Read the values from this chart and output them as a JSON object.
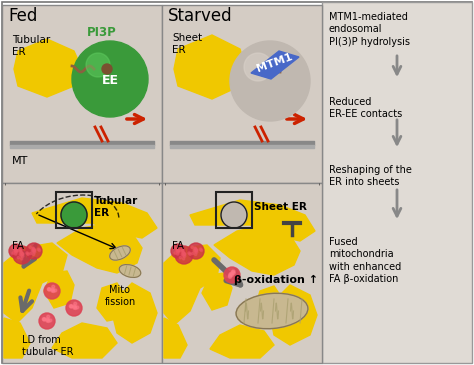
{
  "bg_panel_top": "#d4ccc4",
  "bg_panel_bottom": "#d4ccc4",
  "bg_right": "#e0dbd5",
  "yellow_er": "#f0c800",
  "yellow_er2": "#e8c000",
  "title_fed": "Fed",
  "title_starved": "Starved",
  "label_tubular_er_top": "Tubular\nER",
  "label_sheet_er_top": "Sheet\nER",
  "label_mt": "MT",
  "label_pi3p": "PI3P",
  "label_ee": "EE",
  "label_mtm1": "MTM1",
  "label_fa": "FA",
  "label_mito_fission": "Mito\nfission",
  "label_ld": "LD from\ntubular ER",
  "label_tubular_er_cell": "Tubular\nER",
  "label_sheet_er_cell": "Sheet ER",
  "label_beta_ox": "β-oxidation ↑",
  "right_text1": "MTM1-mediated\nendosomal\nPI(3)P hydrolysis",
  "right_text2": "Reduced\nER-EE contacts",
  "right_text3": "Reshaping of the\nER into sheets",
  "right_text4": "Fused\nmitochondria\nwith enhanced\nFA β-oxidation",
  "green_color": "#3a9a3a",
  "gray_ball": "#c0b8b0",
  "blue_mtm1": "#4868c8",
  "red_arrow": "#cc2200",
  "gray_arrow": "#888888",
  "dark_gray_arrow": "#606060",
  "red_dot": "#cc3344",
  "tan_mito": "#c8b890",
  "brown_curl": "#8b6040"
}
